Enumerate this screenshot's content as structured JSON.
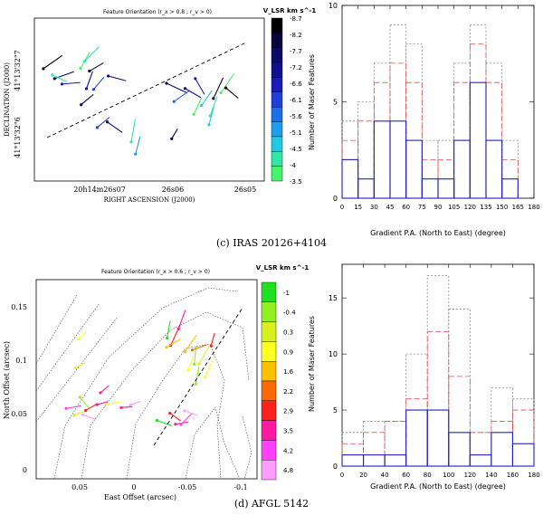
{
  "panels": [
    {
      "caption": "(c) IRAS 20126+4104",
      "scatter": {
        "title": "Feature Orientation  (r_x > 0.8 ; r_v > 0)",
        "xlabel": "RIGHT ASCENSION (J2000)",
        "ylabel": "DECLINATION (J2000)",
        "xticks": [
          "20h14m26s07",
          "26s06",
          "26s05"
        ],
        "yticks": [
          "41°13'32\"7",
          "41°13'32\"6"
        ],
        "colorbar": {
          "title": "V_LSR km s^-1",
          "labels": [
            "-8.7",
            "-8.2",
            "-7.7",
            "-7.2",
            "-6.6",
            "-6.1",
            "-5.6",
            "-5.1",
            "-4.5",
            "-4",
            "-3.5"
          ],
          "colors": [
            "#000000",
            "#06063a",
            "#0a0a68",
            "#10108f",
            "#1a1ab8",
            "#1f3fd6",
            "#1e6fe6",
            "#1f9ef0",
            "#22c9e4",
            "#33e6a6",
            "#44f46a"
          ]
        },
        "features": [
          {
            "x": 0.08,
            "y": 0.73,
            "angle": 35,
            "len": 0.1,
            "c": 0
          },
          {
            "x": 0.13,
            "y": 0.65,
            "angle": 20,
            "len": 0.09,
            "c": 2
          },
          {
            "x": 0.11,
            "y": 0.63,
            "angle": -25,
            "len": 0.07,
            "c": 9
          },
          {
            "x": 0.16,
            "y": 0.6,
            "angle": 5,
            "len": 0.08,
            "c": 4
          },
          {
            "x": 0.22,
            "y": 0.74,
            "angle": 60,
            "len": 0.08,
            "c": 10
          },
          {
            "x": 0.25,
            "y": 0.78,
            "angle": 45,
            "len": 0.09,
            "c": 9
          },
          {
            "x": 0.27,
            "y": 0.7,
            "angle": 30,
            "len": 0.07,
            "c": 1
          },
          {
            "x": 0.24,
            "y": 0.62,
            "angle": 70,
            "len": 0.08,
            "c": 3
          },
          {
            "x": 0.28,
            "y": 0.6,
            "angle": 50,
            "len": 0.07,
            "c": 5
          },
          {
            "x": 0.23,
            "y": 0.5,
            "angle": 40,
            "len": 0.07,
            "c": 2
          },
          {
            "x": 0.36,
            "y": 0.63,
            "angle": -15,
            "len": 0.08,
            "c": 3
          },
          {
            "x": 0.3,
            "y": 0.36,
            "angle": 40,
            "len": 0.07,
            "c": 5
          },
          {
            "x": 0.35,
            "y": 0.33,
            "angle": -35,
            "len": 0.08,
            "c": 2
          },
          {
            "x": 0.43,
            "y": 0.31,
            "angle": 80,
            "len": 0.1,
            "c": 9
          },
          {
            "x": 0.45,
            "y": 0.22,
            "angle": 75,
            "len": 0.08,
            "c": 7
          },
          {
            "x": 0.62,
            "y": 0.57,
            "angle": -25,
            "len": 0.1,
            "c": 2
          },
          {
            "x": 0.64,
            "y": 0.52,
            "angle": 35,
            "len": 0.08,
            "c": 6
          },
          {
            "x": 0.69,
            "y": 0.54,
            "angle": -30,
            "len": 0.08,
            "c": 3
          },
          {
            "x": 0.72,
            "y": 0.58,
            "angle": -60,
            "len": 0.08,
            "c": 4
          },
          {
            "x": 0.71,
            "y": 0.46,
            "angle": 65,
            "len": 0.08,
            "c": 10
          },
          {
            "x": 0.75,
            "y": 0.51,
            "angle": 55,
            "len": 0.08,
            "c": 8
          },
          {
            "x": 0.78,
            "y": 0.46,
            "angle": 70,
            "len": 0.09,
            "c": 9
          },
          {
            "x": 0.8,
            "y": 0.57,
            "angle": 65,
            "len": 0.1,
            "c": 1
          },
          {
            "x": 0.84,
            "y": 0.6,
            "angle": 55,
            "len": 0.1,
            "c": 10
          },
          {
            "x": 0.86,
            "y": 0.54,
            "angle": -40,
            "len": 0.07,
            "c": 0
          },
          {
            "x": 0.77,
            "y": 0.4,
            "angle": 75,
            "len": 0.08,
            "c": 8
          },
          {
            "x": 0.61,
            "y": 0.29,
            "angle": 60,
            "len": 0.05,
            "c": 1
          }
        ]
      },
      "histogram": {
        "type": "bar",
        "xlabel": "Gradient P.A. (North to East) (degree)",
        "ylabel": "Number of Maser Features",
        "xlim": [
          0,
          180
        ],
        "ylim": [
          0,
          10
        ],
        "xticks": [
          0,
          15,
          30,
          45,
          60,
          75,
          90,
          105,
          120,
          135,
          150,
          165,
          180
        ],
        "yticks": [
          0,
          5,
          10
        ],
        "bin_edges": [
          0,
          15,
          30,
          45,
          60,
          75,
          90,
          105,
          120,
          135,
          150,
          165,
          180
        ],
        "series": [
          {
            "name": "solid",
            "color": "#2020c0",
            "dash": "",
            "values": [
              2,
              1,
              4,
              4,
              3,
              1,
              1,
              3,
              6,
              3,
              1,
              0
            ]
          },
          {
            "name": "dashed",
            "color": "#e05050",
            "dash": "6,3",
            "values": [
              3,
              4,
              6,
              7,
              6,
              2,
              2,
              6,
              8,
              6,
              2,
              0
            ]
          },
          {
            "name": "dotted",
            "color": "#888888",
            "dash": "2,2",
            "values": [
              4,
              5,
              7,
              9,
              8,
              3,
              3,
              7,
              9,
              7,
              3,
              0
            ]
          }
        ]
      }
    },
    {
      "caption": "(d) AFGL 5142",
      "scatter": {
        "title": "Feature Orientation  (r_x > 0.6 ; r_v > 0)",
        "xlabel": "East Offset (arcsec)",
        "ylabel": "North Offset (arcsec)",
        "xticks": [
          "0.05",
          "0",
          "-0.05",
          "-0.1"
        ],
        "yticks": [
          "0",
          "0.05",
          "0.1",
          "0.15"
        ],
        "colorbar": {
          "title": "V_LSR km s^-1",
          "labels": [
            "-1",
            "-0.4",
            "0.3",
            "0.9",
            "1.6",
            "2.2",
            "2.9",
            "3.5",
            "4.2",
            "4.8"
          ],
          "colors": [
            "#20e020",
            "#90f020",
            "#d8f020",
            "#ffff20",
            "#ffc000",
            "#ff6a00",
            "#ff2020",
            "#ff1aa0",
            "#ff40ff",
            "#ff9cff"
          ]
        },
        "features": [
          {
            "x": 0.17,
            "y": 0.36,
            "angle": 10,
            "len": 0.07,
            "c": 8
          },
          {
            "x": 0.2,
            "y": 0.33,
            "angle": 20,
            "len": 0.06,
            "c": 2
          },
          {
            "x": 0.22,
            "y": 0.38,
            "angle": -50,
            "len": 0.07,
            "c": 1
          },
          {
            "x": 0.25,
            "y": 0.36,
            "angle": 30,
            "len": 0.06,
            "c": 6
          },
          {
            "x": 0.24,
            "y": 0.31,
            "angle": -20,
            "len": 0.06,
            "c": 9
          },
          {
            "x": 0.3,
            "y": 0.38,
            "angle": 15,
            "len": 0.05,
            "c": 7
          },
          {
            "x": 0.35,
            "y": 0.38,
            "angle": 10,
            "len": 0.05,
            "c": 3
          },
          {
            "x": 0.41,
            "y": 0.36,
            "angle": 5,
            "len": 0.05,
            "c": 7
          },
          {
            "x": 0.45,
            "y": 0.38,
            "angle": 20,
            "len": 0.05,
            "c": 9
          },
          {
            "x": 0.31,
            "y": 0.45,
            "angle": 40,
            "len": 0.05,
            "c": 7
          },
          {
            "x": 0.2,
            "y": 0.57,
            "angle": 30,
            "len": 0.05,
            "c": 2
          },
          {
            "x": 0.21,
            "y": 0.72,
            "angle": 45,
            "len": 0.05,
            "c": 3
          },
          {
            "x": 0.58,
            "y": 0.28,
            "angle": -20,
            "len": 0.07,
            "c": 0
          },
          {
            "x": 0.63,
            "y": 0.31,
            "angle": -35,
            "len": 0.06,
            "c": 6
          },
          {
            "x": 0.66,
            "y": 0.28,
            "angle": 10,
            "len": 0.06,
            "c": 7
          },
          {
            "x": 0.68,
            "y": 0.3,
            "angle": 45,
            "len": 0.07,
            "c": 8
          },
          {
            "x": 0.7,
            "y": 0.33,
            "angle": -20,
            "len": 0.06,
            "c": 9
          },
          {
            "x": 0.6,
            "y": 0.75,
            "angle": 80,
            "len": 0.08,
            "c": 0
          },
          {
            "x": 0.63,
            "y": 0.72,
            "angle": 65,
            "len": 0.1,
            "c": 6
          },
          {
            "x": 0.66,
            "y": 0.8,
            "angle": 70,
            "len": 0.09,
            "c": 7
          },
          {
            "x": 0.62,
            "y": 0.68,
            "angle": 30,
            "len": 0.07,
            "c": 4
          },
          {
            "x": 0.7,
            "y": 0.68,
            "angle": 55,
            "len": 0.09,
            "c": 4
          },
          {
            "x": 0.72,
            "y": 0.62,
            "angle": 85,
            "len": 0.08,
            "c": 1
          },
          {
            "x": 0.74,
            "y": 0.66,
            "angle": 20,
            "len": 0.07,
            "c": 5
          },
          {
            "x": 0.76,
            "y": 0.62,
            "angle": 60,
            "len": 0.09,
            "c": 2
          },
          {
            "x": 0.7,
            "y": 0.58,
            "angle": 70,
            "len": 0.07,
            "c": 3
          },
          {
            "x": 0.78,
            "y": 0.55,
            "angle": 65,
            "len": 0.08,
            "c": 3
          },
          {
            "x": 0.73,
            "y": 0.52,
            "angle": 80,
            "len": 0.08,
            "c": 1
          },
          {
            "x": 0.8,
            "y": 0.7,
            "angle": 75,
            "len": 0.06,
            "c": 6
          }
        ]
      },
      "histogram": {
        "type": "bar",
        "xlabel": "Gradient P.A. (North to East) (degree)",
        "ylabel": "Number of Maser Features",
        "xlim": [
          0,
          180
        ],
        "ylim": [
          0,
          18
        ],
        "xticks": [
          0,
          20,
          40,
          60,
          80,
          100,
          120,
          140,
          160,
          180
        ],
        "yticks": [
          0,
          5,
          10,
          15
        ],
        "bin_edges": [
          0,
          20,
          40,
          60,
          80,
          100,
          120,
          140,
          160,
          180
        ],
        "series": [
          {
            "name": "solid",
            "color": "#2020c0",
            "dash": "",
            "values": [
              1,
              1,
              1,
              5,
              5,
              3,
              1,
              3,
              2
            ]
          },
          {
            "name": "dashed",
            "color": "#e05050",
            "dash": "6,3",
            "values": [
              2,
              3,
              4,
              6,
              12,
              8,
              3,
              4,
              5
            ]
          },
          {
            "name": "dotted",
            "color": "#888888",
            "dash": "2,2",
            "values": [
              3,
              4,
              4,
              10,
              17,
              14,
              3,
              7,
              6
            ]
          }
        ]
      }
    }
  ]
}
